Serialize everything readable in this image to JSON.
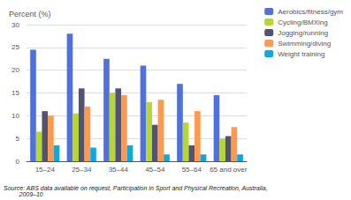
{
  "chart_data": {
    "type": "bar",
    "ylabel": "Percent (%)",
    "categories": [
      "15–24",
      "25–34",
      "35–44",
      "45–54",
      "55–64",
      "65 and over"
    ],
    "series": [
      {
        "name": "Aerobics/fitness/gym",
        "values": [
          24.5,
          28.0,
          22.5,
          21.0,
          17.0,
          14.5
        ]
      },
      {
        "name": "Cycling/BMXing",
        "values": [
          6.5,
          10.5,
          15.0,
          13.0,
          8.5,
          5.0
        ]
      },
      {
        "name": "Jogging/running",
        "values": [
          11.0,
          16.0,
          16.0,
          8.0,
          3.5,
          5.5
        ]
      },
      {
        "name": "Swimming/diving",
        "values": [
          10.0,
          12.0,
          14.5,
          13.5,
          11.0,
          7.5
        ]
      },
      {
        "name": "Weight training",
        "values": [
          3.5,
          3.0,
          3.5,
          1.5,
          1.5,
          1.5
        ]
      }
    ],
    "ylim": [
      0,
      30
    ],
    "yticks": [
      0,
      5,
      10,
      15,
      20,
      25,
      30
    ],
    "grid": true,
    "legend": "upper right",
    "annotations": [
      "Source: ABS data available on request, Participation in Sport and Physical Recreation, Australia,\n         2009–10"
    ]
  }
}
